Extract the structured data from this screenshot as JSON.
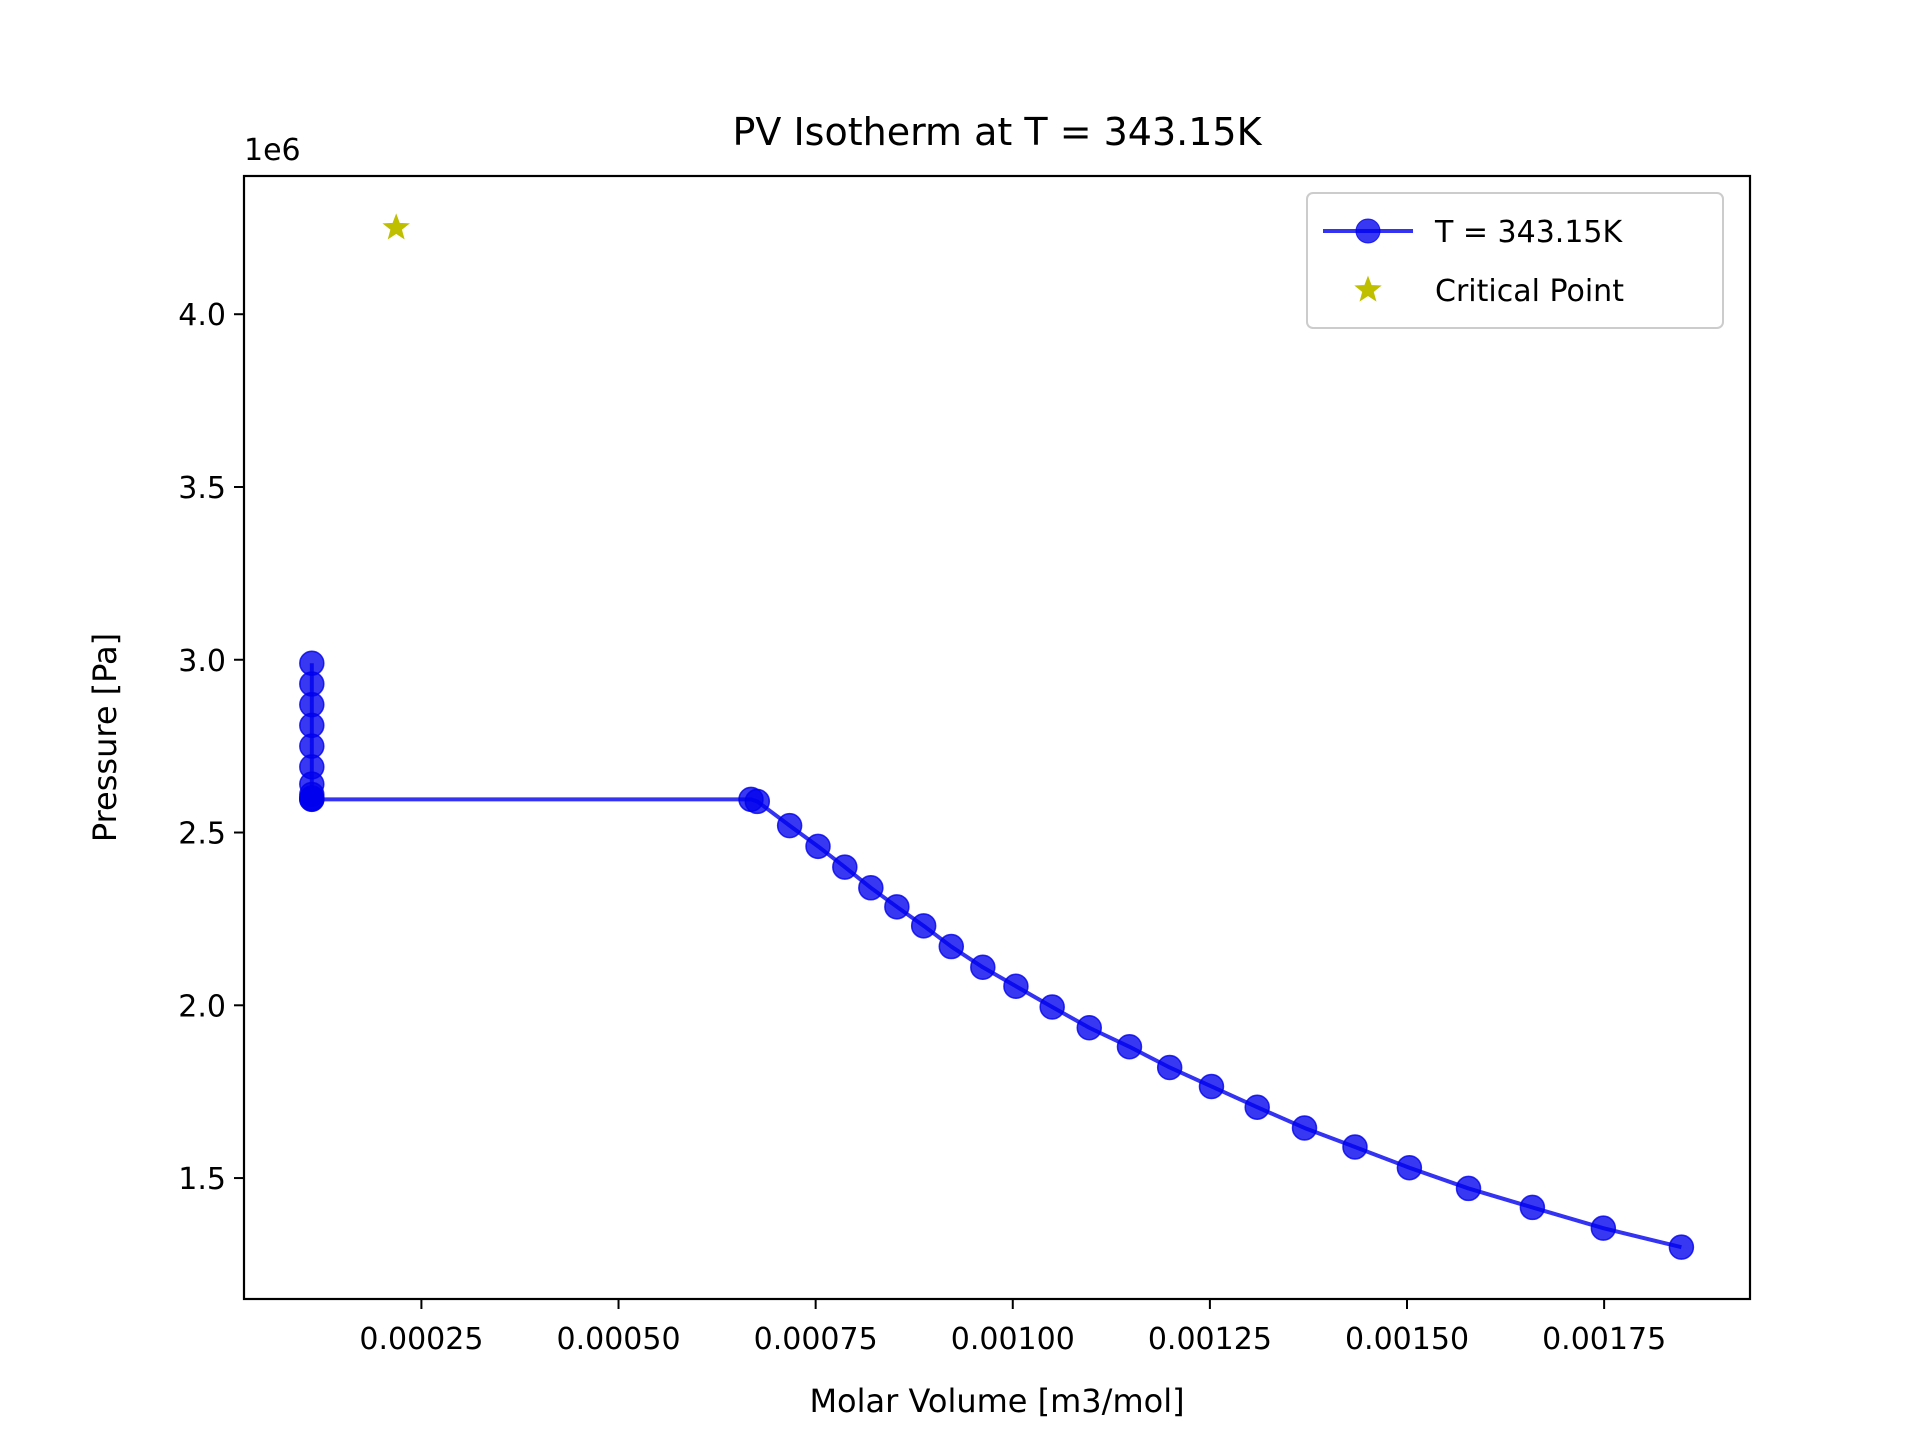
{
  "chart_data": {
    "type": "line",
    "title": "PV Isotherm at T = 343.15K",
    "xlabel": "Molar Volume [m3/mol]",
    "ylabel": "Pressure [Pa]",
    "y_offset_label": "1e6",
    "xlim": [
      2.5e-05,
      0.001935
    ],
    "ylim": [
      1150000,
      4400000
    ],
    "x_ticks": [
      0.00025,
      0.0005,
      0.00075,
      0.001,
      0.00125,
      0.0015,
      0.00175
    ],
    "x_tick_labels": [
      "0.00025",
      "0.00050",
      "0.00075",
      "0.00100",
      "0.00125",
      "0.00150",
      "0.00175"
    ],
    "y_ticks": [
      1500000,
      2000000,
      2500000,
      3000000,
      3500000,
      4000000
    ],
    "y_tick_labels": [
      "1.5",
      "2.0",
      "2.5",
      "3.0",
      "3.5",
      "4.0"
    ],
    "grid": false,
    "legend_position": "top-right",
    "colors": {
      "isotherm": "#0000ee",
      "critical_point": "#bfbf00",
      "axes": "#000000"
    },
    "series": [
      {
        "name": "T = 343.15K",
        "style": "line-with-circle-markers",
        "x": [
          0.000111,
          0.000111,
          0.000111,
          0.000111,
          0.000111,
          0.000111,
          0.000111,
          0.000111,
          0.000111,
          0.000111,
          0.000111,
          0.000668,
          0.000676,
          0.000717,
          0.000753,
          0.000787,
          0.00082,
          0.000853,
          0.000887,
          0.000922,
          0.000962,
          0.001004,
          0.00105,
          0.001097,
          0.001148,
          0.001199,
          0.001252,
          0.00131,
          0.00137,
          0.001434,
          0.001503,
          0.001578,
          0.001659,
          0.001749,
          0.001848
        ],
        "y": [
          2990000,
          2930000,
          2870000,
          2810000,
          2750000,
          2690000,
          2640000,
          2610000,
          2600000,
          2597000,
          2596000,
          2596000,
          2590000,
          2520000,
          2460000,
          2400000,
          2340000,
          2285000,
          2230000,
          2170000,
          2110000,
          2055000,
          1995000,
          1935000,
          1880000,
          1820000,
          1765000,
          1705000,
          1645000,
          1590000,
          1530000,
          1470000,
          1415000,
          1355000,
          1300000
        ]
      },
      {
        "name": "Critical Point",
        "style": "star-marker",
        "x": [
          0.000218
        ],
        "y": [
          4250000
        ]
      }
    ]
  }
}
